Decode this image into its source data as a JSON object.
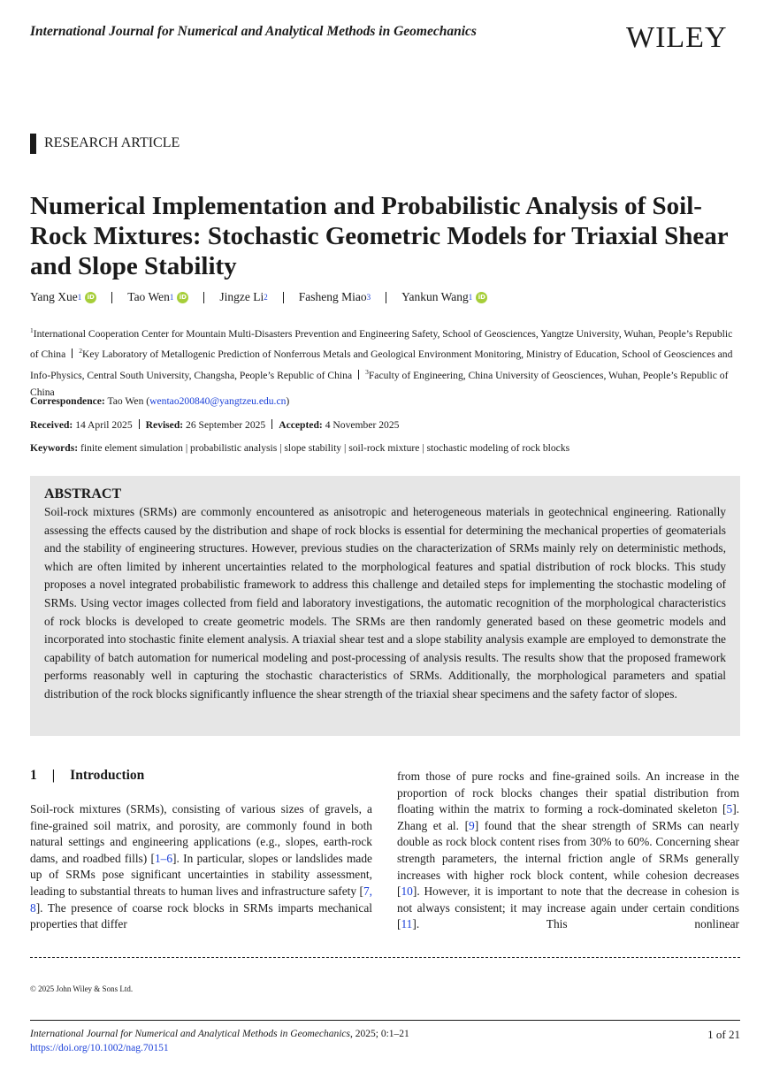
{
  "header": {
    "journal": "International Journal for Numerical and Analytical Methods in Geomechanics",
    "logo": "WILEY"
  },
  "article_type": "RESEARCH ARTICLE",
  "title": "Numerical Implementation and Probabilistic Analysis of Soil-Rock Mixtures: Stochastic Geometric Models for Triaxial Shear and Slope Stability",
  "authors": [
    {
      "name": "Yang Xue",
      "aff": "1",
      "orcid": true
    },
    {
      "name": "Tao Wen",
      "aff": "1",
      "orcid": true
    },
    {
      "name": "Jingze Li",
      "aff": "2",
      "orcid": false
    },
    {
      "name": "Fasheng Miao",
      "aff": "3",
      "orcid": false
    },
    {
      "name": "Yankun Wang",
      "aff": "1",
      "orcid": true
    }
  ],
  "orcid_label": "iD",
  "affiliations": [
    {
      "num": "1",
      "text": "International Cooperation Center for Mountain Multi-Disasters Prevention and Engineering Safety, School of Geosciences, Yangtze University, Wuhan, People’s Republic of China"
    },
    {
      "num": "2",
      "text": "Key Laboratory of Metallogenic Prediction of Nonferrous Metals and Geological Environment Monitoring, Ministry of Education, School of Geosciences and Info-Physics, Central South University, Changsha, People’s Republic of China"
    },
    {
      "num": "3",
      "text": "Faculty of Engineering, China University of Geosciences, Wuhan, People’s Republic of China"
    }
  ],
  "correspondence": {
    "label": "Correspondence:",
    "name": "Tao Wen",
    "email": "wentao200840@yangtzeu.edu.cn"
  },
  "dates": {
    "received_label": "Received:",
    "received": "14 April 2025",
    "revised_label": "Revised:",
    "revised": "26 September 2025",
    "accepted_label": "Accepted:",
    "accepted": "4 November 2025"
  },
  "keywords": {
    "label": "Keywords:",
    "text": "finite element simulation | probabilistic analysis | slope stability | soil-rock mixture | stochastic modeling of rock blocks"
  },
  "abstract": {
    "heading": "ABSTRACT",
    "text": "Soil-rock mixtures (SRMs) are commonly encountered as anisotropic and heterogeneous materials in geotechnical engineering. Rationally assessing the effects caused by the distribution and shape of rock blocks is essential for determining the mechanical properties of geomaterials and the stability of engineering structures. However, previous studies on the characterization of SRMs mainly rely on deterministic methods, which are often limited by inherent uncertainties related to the morphological features and spatial distribution of rock blocks. This study proposes a novel integrated probabilistic framework to address this challenge and detailed steps for implementing the stochastic modeling of SRMs. Using vector images collected from field and laboratory investigations, the automatic recognition of the morphological characteristics of rock blocks is developed to create geometric models. The SRMs are then randomly generated based on these geometric models and incorporated into stochastic finite element analysis. A triaxial shear test and a slope stability analysis example are employed to demonstrate the capability of batch automation for numerical modeling and post-processing of analysis results. The results show that the proposed framework performs reasonably well in capturing the stochastic characteristics of SRMs. Additionally, the morphological parameters and spatial distribution of the rock blocks significantly influence the shear strength of the triaxial shear specimens and the safety factor of slopes."
  },
  "section": {
    "number": "1",
    "title": "Introduction"
  },
  "left_col": [
    "Soil-rock mixtures (SRMs), consisting of various sizes of gravels, a fine-grained soil matrix, and porosity, are commonly found in both natural settings and engineering applications (e.g., slopes, earth-rock dams, and roadbed fills) [",
    "1–6",
    "]. In particular, slopes or landslides made up of SRMs pose significant uncertainties in stability assessment, leading to substantial threats to human lives and infrastructure safety [",
    "7, 8",
    "]. The presence of coarse rock blocks in SRMs imparts mechanical properties that differ"
  ],
  "right_col": [
    "from those of pure rocks and fine-grained soils. An increase in the proportion of rock blocks changes their spatial distribution from floating within the matrix to forming a rock-dominated skeleton [",
    "5",
    "]. Zhang et al. [",
    "9",
    "] found that the shear strength of SRMs can nearly double as rock block content rises from 30% to 60%. Concerning shear strength parameters, the internal friction angle of SRMs generally increases with higher rock block content, while cohesion decreases [",
    "10",
    "]. However, it is important to note that the decrease in cohesion is not always consistent; it may increase again under certain conditions [",
    "11",
    "]. This nonlinear"
  ],
  "copyright": "© 2025 John Wiley & Sons Ltd.",
  "footer": {
    "journal": "International Journal for Numerical and Analytical Methods in Geomechanics",
    "citation": ", 2025; 0:1–21",
    "doi": "https://doi.org/10.1002/nag.70151",
    "page": "1 of 21"
  },
  "colors": {
    "link": "#1a3fd8",
    "orcid": "#a6ce39",
    "abstract_bg": "#e6e6e6"
  }
}
